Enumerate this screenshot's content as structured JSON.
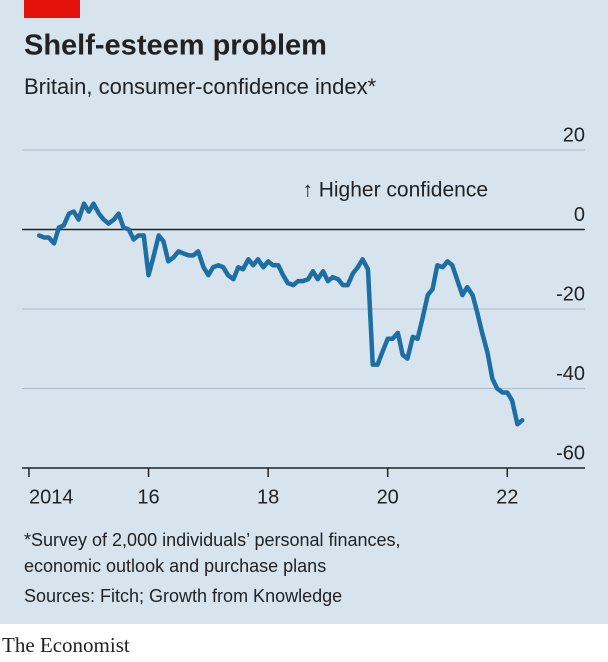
{
  "chart_data": {
    "type": "line",
    "title": "Shelf-esteem problem",
    "subtitle": "Britain, consumer-confidence index*",
    "annotation": "↑ Higher confidence",
    "footnote": [
      "*Survey of 2,000 individuals’ personal finances,",
      "economic outlook and purchase plans"
    ],
    "source": "Sources: Fitch; Growth from Knowledge",
    "brand": "The Economist",
    "x": [
      2014.17,
      2014.25,
      2014.33,
      2014.42,
      2014.5,
      2014.58,
      2014.67,
      2014.75,
      2014.83,
      2014.92,
      2015.0,
      2015.08,
      2015.17,
      2015.25,
      2015.33,
      2015.42,
      2015.5,
      2015.58,
      2015.67,
      2015.75,
      2015.83,
      2015.92,
      2016.0,
      2016.08,
      2016.17,
      2016.25,
      2016.33,
      2016.42,
      2016.5,
      2016.58,
      2016.67,
      2016.75,
      2016.83,
      2016.92,
      2017.0,
      2017.08,
      2017.17,
      2017.25,
      2017.33,
      2017.42,
      2017.5,
      2017.58,
      2017.67,
      2017.75,
      2017.83,
      2017.92,
      2018.0,
      2018.08,
      2018.17,
      2018.25,
      2018.33,
      2018.42,
      2018.5,
      2018.58,
      2018.67,
      2018.75,
      2018.83,
      2018.92,
      2019.0,
      2019.08,
      2019.17,
      2019.25,
      2019.33,
      2019.42,
      2019.5,
      2019.58,
      2019.67,
      2019.75,
      2019.83,
      2019.92,
      2020.0,
      2020.08,
      2020.17,
      2020.25,
      2020.33,
      2020.42,
      2020.5,
      2020.58,
      2020.67,
      2020.75,
      2020.83,
      2020.92,
      2021.0,
      2021.08,
      2021.17,
      2021.25,
      2021.33,
      2021.42,
      2021.5,
      2021.58,
      2021.67,
      2021.75,
      2021.83,
      2021.92,
      2022.0,
      2022.08,
      2022.17,
      2022.25
    ],
    "series": [
      {
        "name": "Consumer-confidence index",
        "color": "#1d6ea3",
        "values": [
          -1.5,
          -2,
          -2,
          -3.5,
          0.5,
          1,
          4,
          4.5,
          2.5,
          6.5,
          4.5,
          6.5,
          4,
          2.5,
          1.5,
          2.5,
          4,
          0.5,
          0,
          -2.5,
          -1.5,
          -1.5,
          -11.5,
          -7,
          -1.5,
          -3,
          -8,
          -7,
          -5.5,
          -6,
          -6.5,
          -6.5,
          -5.5,
          -9.5,
          -11.5,
          -9.5,
          -9,
          -9.5,
          -11.5,
          -12.5,
          -9.5,
          -10,
          -7.5,
          -9,
          -7.5,
          -9.5,
          -8,
          -9,
          -9,
          -11.5,
          -13.5,
          -14,
          -13,
          -13,
          -12.5,
          -10.5,
          -12.5,
          -10.5,
          -13,
          -12,
          -12.5,
          -14,
          -14,
          -11,
          -9.5,
          -7.5,
          -10,
          -34,
          -34,
          -30.5,
          -27.5,
          -27.5,
          -26,
          -31.5,
          -32.5,
          -27,
          -27.5,
          -22.5,
          -16.5,
          -15,
          -9,
          -9.5,
          -8,
          -9,
          -13,
          -16.5,
          -14.5,
          -16.5,
          -21,
          -26,
          -31,
          -37.5,
          -40,
          -41,
          -41,
          -43,
          -49,
          -48
        ]
      }
    ],
    "xlim": [
      2013.85,
      2023.3
    ],
    "xticks": [
      2014,
      {
        "value": 2016,
        "label": "16"
      },
      {
        "value": 2018,
        "label": "18"
      },
      {
        "value": 2020,
        "label": "20"
      },
      {
        "value": 2022,
        "label": "22"
      }
    ],
    "ylim": [
      -60,
      20
    ],
    "yticks": [
      20,
      0,
      -20,
      -40,
      -60
    ],
    "grid": true
  }
}
